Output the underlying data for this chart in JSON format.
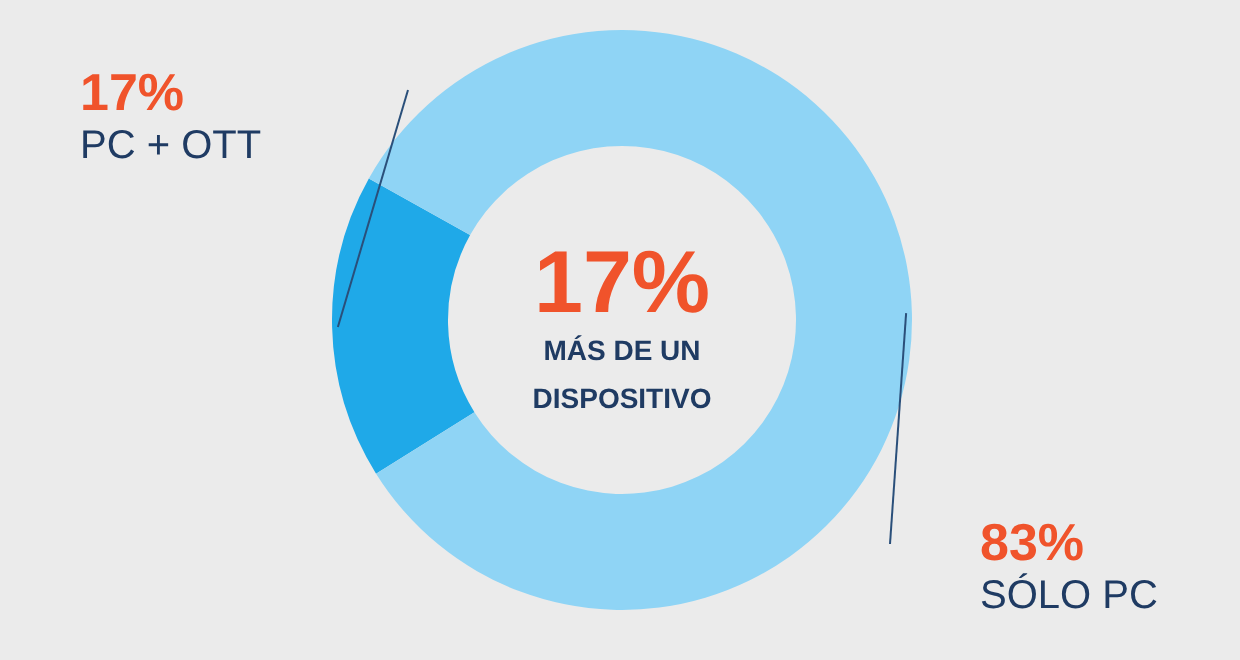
{
  "chart_data": {
    "type": "donut",
    "categories": [
      "PC + OTT",
      "SÓLO PC"
    ],
    "values": [
      17,
      83
    ],
    "value_labels": [
      "17%",
      "83%"
    ],
    "colors": [
      "#1fa9e8",
      "#8fd4f5"
    ],
    "annotations": [
      "17%",
      "MÁS DE UN DISPOSITIVO"
    ],
    "legend": false
  }
}
